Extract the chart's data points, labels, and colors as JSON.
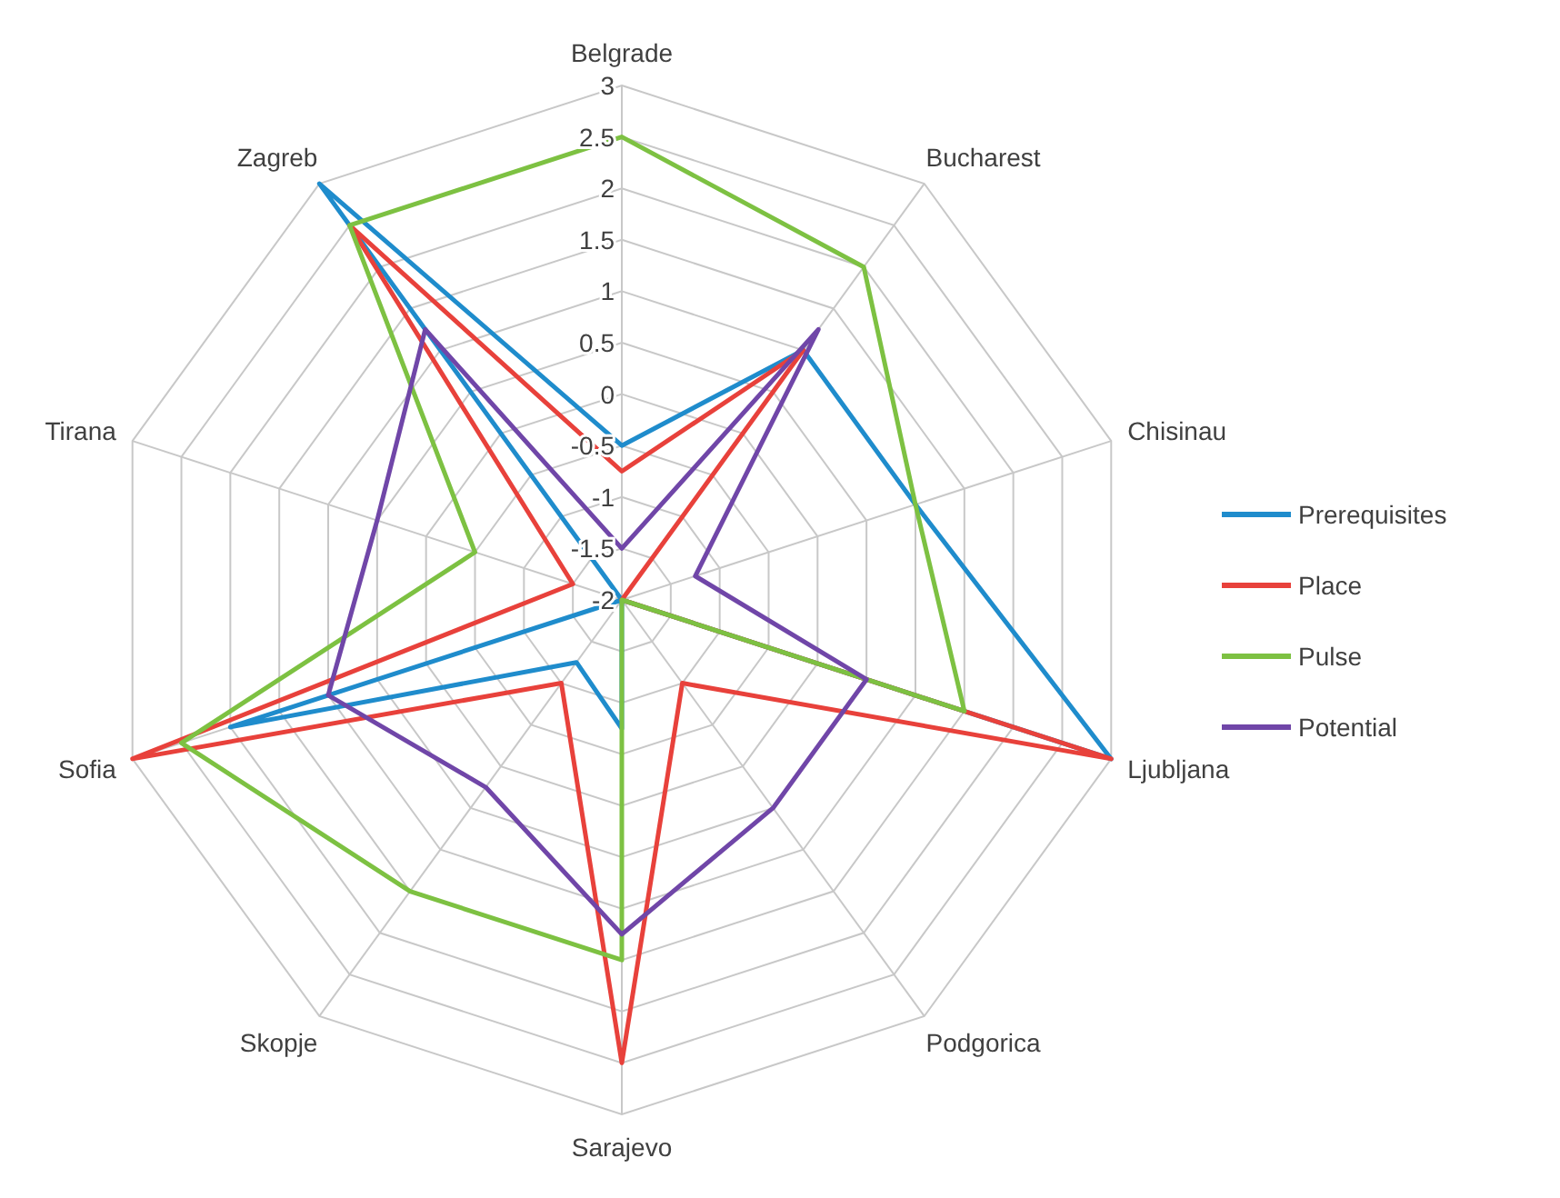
{
  "chart_data": {
    "type": "radar",
    "categories": [
      "Belgrade",
      "Bucharest",
      "Chisinau",
      "Ljubljana",
      "Podgorica",
      "Sarajevo",
      "Skopje",
      "Sofia",
      "Tirana",
      "Zagreb"
    ],
    "series": [
      {
        "name": "Prerequisites",
        "color": "#1f8ccc",
        "values": [
          -0.5,
          1,
          1,
          3,
          -2,
          -0.75,
          -1.25,
          2,
          -2,
          3
        ]
      },
      {
        "name": "Place",
        "color": "#e8413b",
        "values": [
          -0.75,
          1,
          -2,
          3,
          -1,
          2.5,
          -1,
          3,
          -1.5,
          2.5
        ]
      },
      {
        "name": "Pulse",
        "color": "#7dc142",
        "values": [
          2.5,
          2,
          1,
          1.5,
          -2,
          1.5,
          1.5,
          2.5,
          -0.5,
          2.5
        ]
      },
      {
        "name": "Potential",
        "color": "#7046a8",
        "values": [
          -1.5,
          1.25,
          -1.25,
          0.5,
          0.5,
          1.25,
          0.25,
          1,
          0.5,
          1.25
        ]
      }
    ],
    "ylim": [
      -2,
      3
    ],
    "yticks": [
      -2,
      -1.5,
      -1,
      -0.5,
      0,
      0.5,
      1,
      1.5,
      2,
      2.5,
      3
    ],
    "grid": true,
    "legend": "right"
  }
}
